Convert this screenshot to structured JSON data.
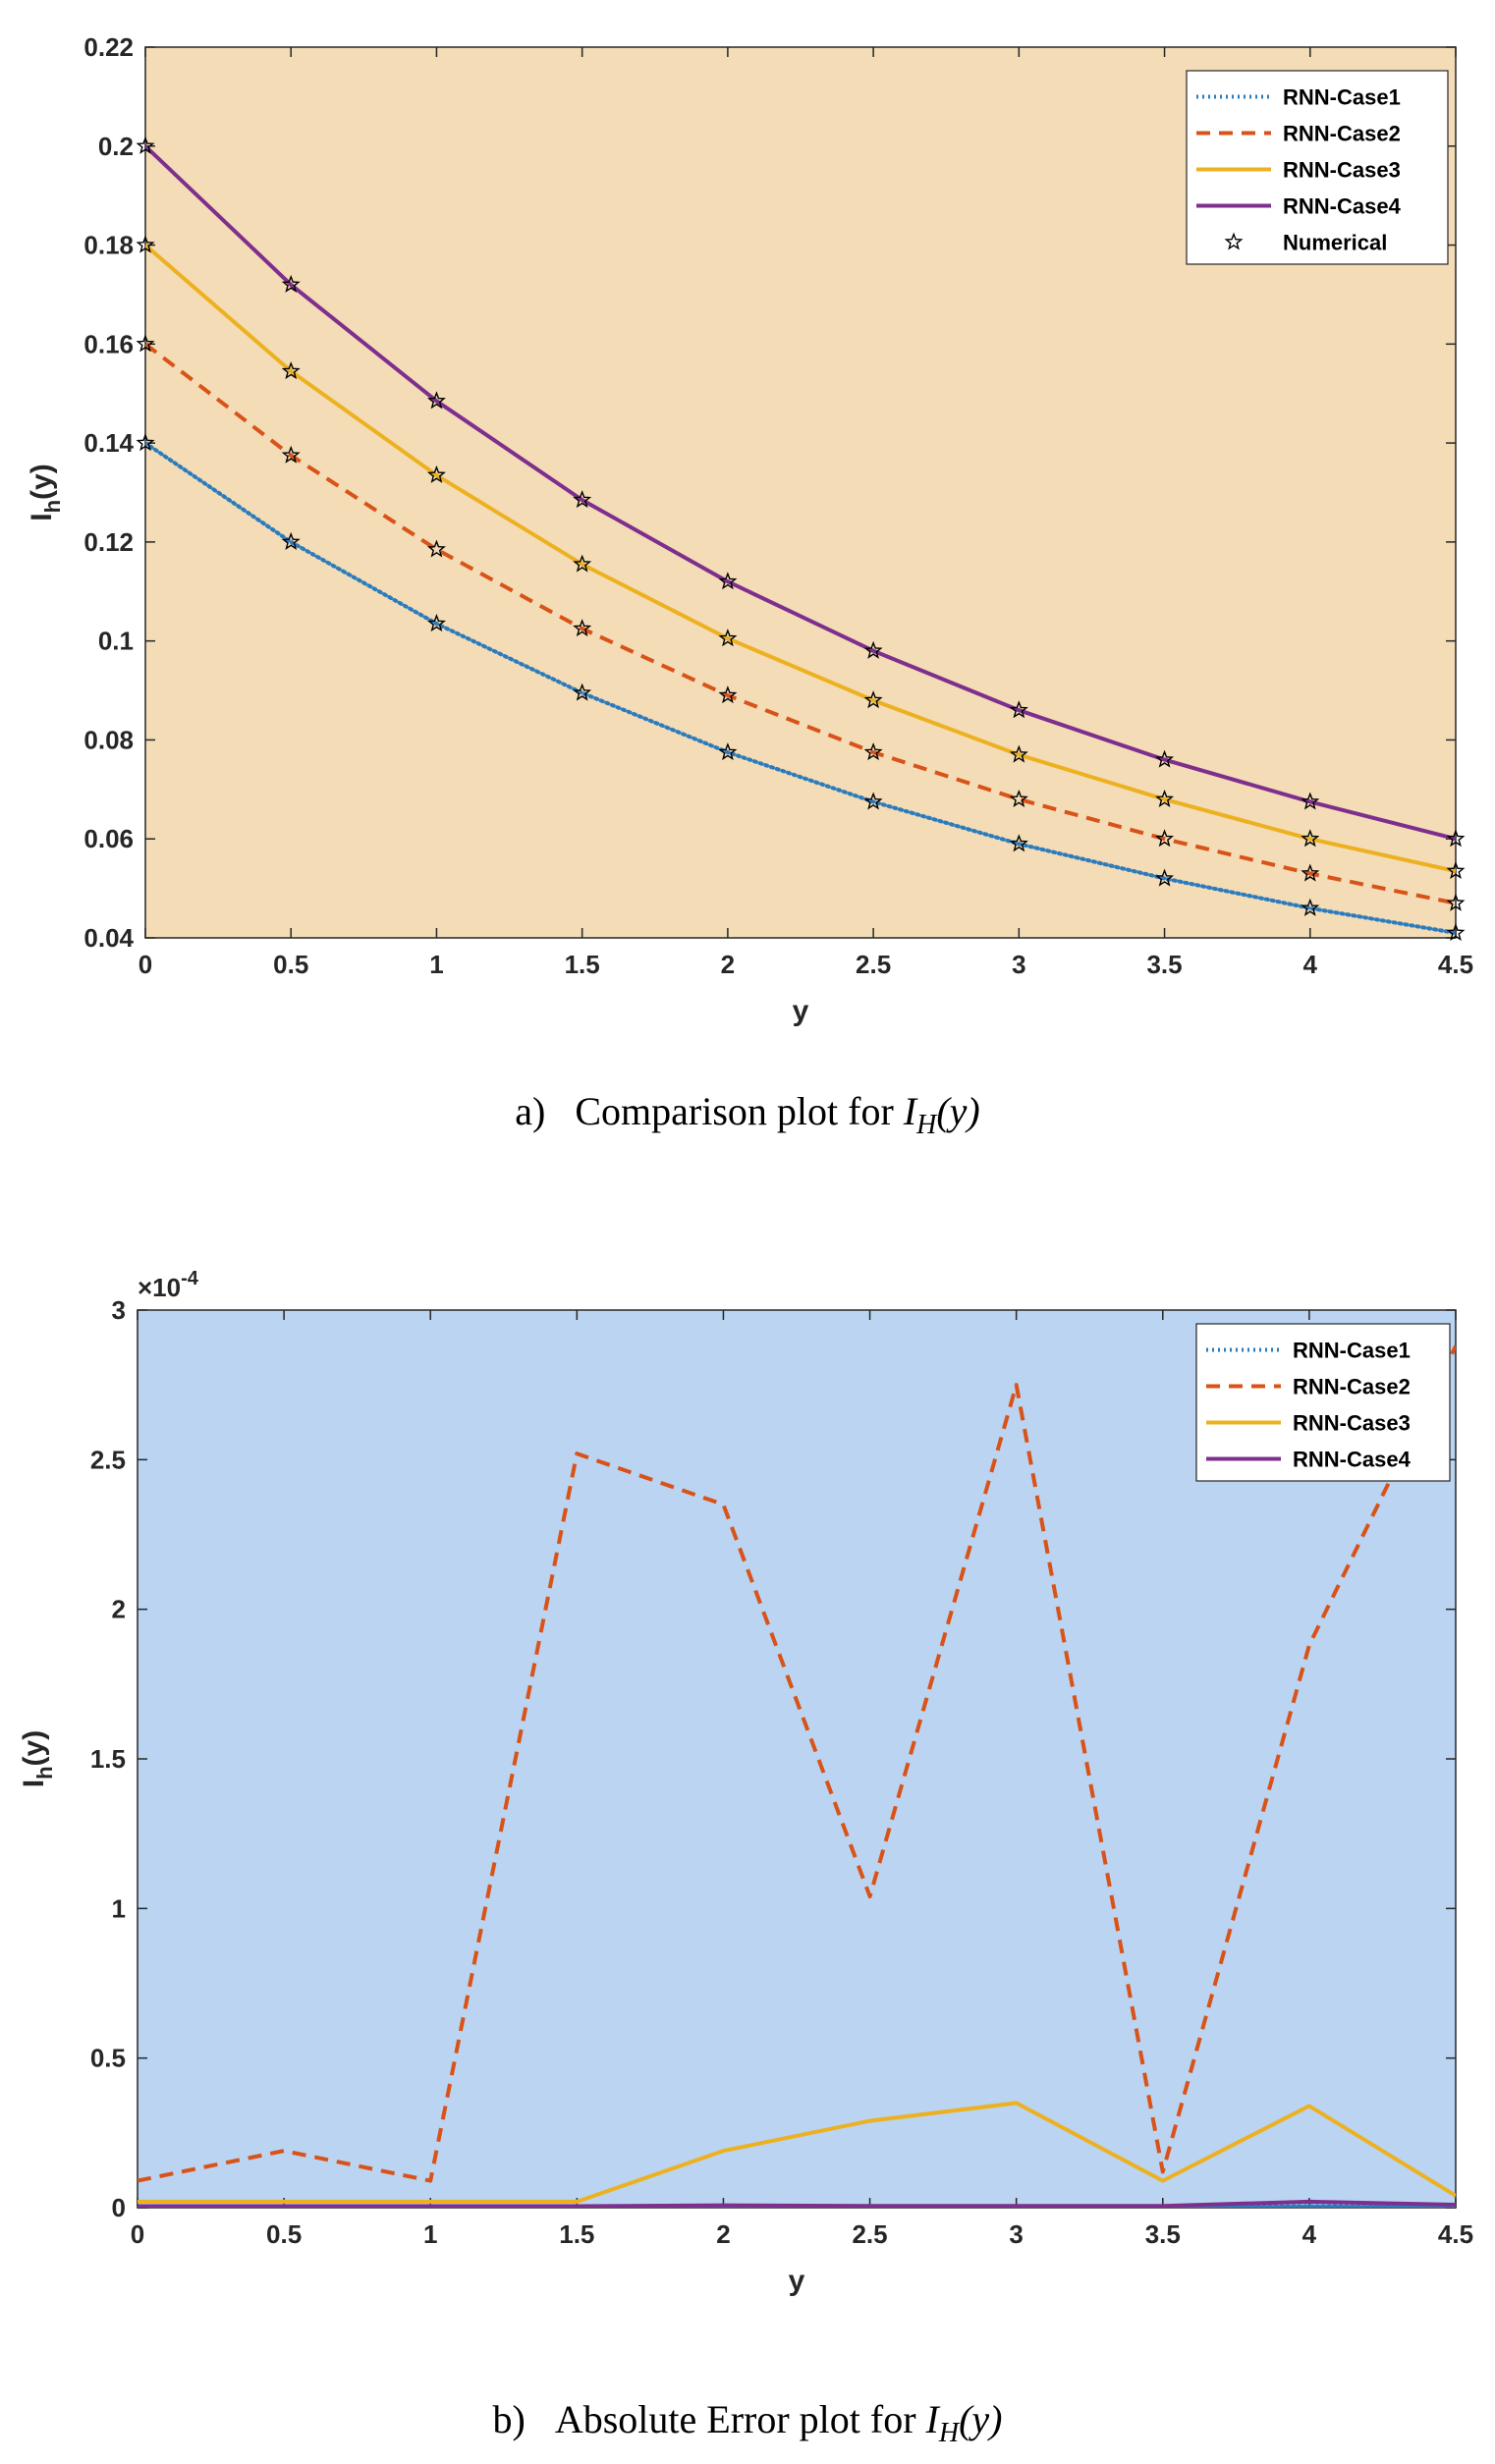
{
  "chart_data": [
    {
      "type": "line",
      "panel": "a",
      "caption": {
        "label": "a)",
        "text": "Comparison plot for",
        "math": "I",
        "math_sub": "H",
        "math_arg": "(y)"
      },
      "xlabel": "y",
      "ylabel": "I",
      "ylabel_sub": "h",
      "ylabel_arg": "(y)",
      "xlim": [
        0,
        4.5
      ],
      "ylim": [
        0.04,
        0.22
      ],
      "x_ticks": [
        "0",
        "0.5",
        "1",
        "1.5",
        "2",
        "2.5",
        "3",
        "3.5",
        "4",
        "4.5"
      ],
      "y_ticks": [
        "0.04",
        "0.06",
        "0.08",
        "0.1",
        "0.12",
        "0.14",
        "0.16",
        "0.18",
        "0.2",
        "0.22"
      ],
      "background": "#f3dcb6",
      "grid": false,
      "legend_position": "top-right",
      "x": [
        0,
        0.5,
        1,
        1.5,
        2,
        2.5,
        3,
        3.5,
        4,
        4.5
      ],
      "series": [
        {
          "name": "RNN-Case1",
          "color": "#2b7bbd",
          "style": "dotted",
          "values": [
            0.14,
            0.12,
            0.1035,
            0.0895,
            0.0775,
            0.0675,
            0.059,
            0.052,
            0.046,
            0.041
          ]
        },
        {
          "name": "RNN-Case2",
          "color": "#d95319",
          "style": "dashed",
          "values": [
            0.16,
            0.1375,
            0.1185,
            0.1025,
            0.089,
            0.0775,
            0.068,
            0.06,
            0.053,
            0.047
          ]
        },
        {
          "name": "RNN-Case3",
          "color": "#edb120",
          "style": "solid",
          "values": [
            0.18,
            0.1545,
            0.1335,
            0.1155,
            0.1005,
            0.088,
            0.077,
            0.068,
            0.06,
            0.0535
          ]
        },
        {
          "name": "RNN-Case4",
          "color": "#7e2f8e",
          "style": "solid",
          "values": [
            0.2,
            0.172,
            0.1485,
            0.1285,
            0.112,
            0.098,
            0.086,
            0.076,
            0.0675,
            0.06
          ]
        },
        {
          "name": "Numerical",
          "color": "#000000",
          "style": "markers-star",
          "marker_color": "#000000",
          "values": "same as RNN cases at each x"
        }
      ]
    },
    {
      "type": "line",
      "panel": "b",
      "caption": {
        "label": "b)",
        "text": "Absolute Error plot for",
        "math": "I",
        "math_sub": "H",
        "math_arg": "(y)"
      },
      "xlabel": "y",
      "ylabel": "I",
      "ylabel_sub": "h",
      "ylabel_arg": "(y)",
      "scale_label": "×10",
      "scale_exp": "-4",
      "xlim": [
        0,
        4.5
      ],
      "ylim": [
        0,
        3
      ],
      "y_unit_multiplier": 0.0001,
      "x_ticks": [
        "0",
        "0.5",
        "1",
        "1.5",
        "2",
        "2.5",
        "3",
        "3.5",
        "4",
        "4.5"
      ],
      "y_ticks": [
        "0",
        "0.5",
        "1",
        "1.5",
        "2",
        "2.5",
        "3"
      ],
      "background": "#bad4f2",
      "grid": false,
      "legend_position": "top-right",
      "x": [
        0,
        0.5,
        1,
        1.5,
        2,
        2.5,
        3,
        3.5,
        4,
        4.5
      ],
      "series": [
        {
          "name": "RNN-Case1",
          "color": "#2b7bbd",
          "style": "dotted",
          "values": [
            0.002,
            0.002,
            0.002,
            0.002,
            0.004,
            0.004,
            0.004,
            0.003,
            0.005,
            0.004
          ]
        },
        {
          "name": "RNN-Case2",
          "color": "#d95319",
          "style": "dashed",
          "values": [
            0.09,
            0.19,
            0.09,
            2.52,
            2.35,
            1.04,
            2.75,
            0.12,
            1.88,
            2.88
          ]
        },
        {
          "name": "RNN-Case3",
          "color": "#edb120",
          "style": "solid",
          "values": [
            0.02,
            0.02,
            0.02,
            0.02,
            0.19,
            0.29,
            0.35,
            0.09,
            0.34,
            0.04
          ]
        },
        {
          "name": "RNN-Case4",
          "color": "#7e2f8e",
          "style": "solid",
          "values": [
            0.005,
            0.005,
            0.005,
            0.005,
            0.008,
            0.006,
            0.006,
            0.006,
            0.02,
            0.01
          ]
        }
      ]
    }
  ]
}
